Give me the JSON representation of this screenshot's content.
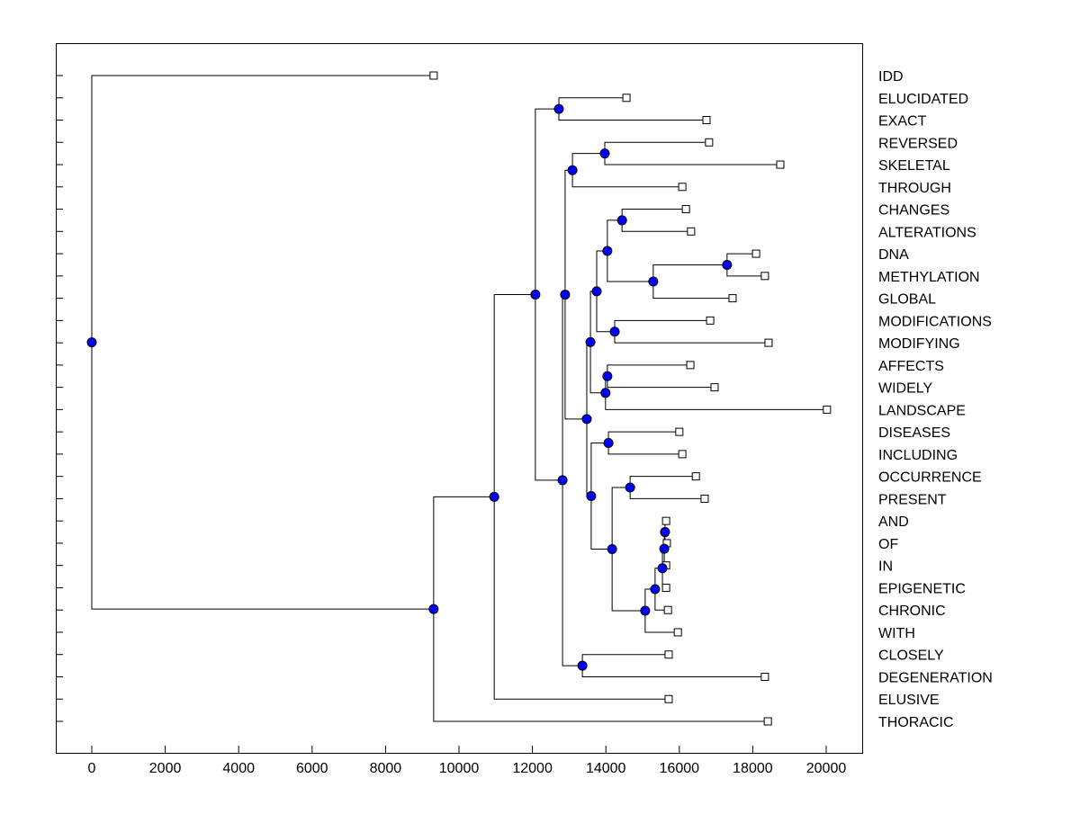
{
  "chart_data": {
    "type": "dendrogram",
    "title": "",
    "xlabel": "",
    "ylabel": "",
    "xlim": [
      -980,
      20980
    ],
    "xticks": [
      0,
      2000,
      4000,
      6000,
      8000,
      10000,
      12000,
      14000,
      16000,
      18000,
      20000
    ],
    "grid": false,
    "colors": {
      "node": "#0000ff",
      "line": "#000000",
      "leaf": "#ffffff"
    },
    "tree": {
      "h": 0,
      "children": [
        {
          "label": "IDD",
          "h": 9310
        },
        {
          "h": 9310,
          "children": [
            {
              "h": 10960,
              "children": [
                {
                  "h": 12080,
                  "children": [
                    {
                      "h": 12720,
                      "children": [
                        {
                          "label": "ELUCIDATED",
                          "h": 14560
                        },
                        {
                          "label": "EXACT",
                          "h": 16740
                        }
                      ]
                    },
                    {
                      "h": 12820,
                      "children": [
                        {
                          "h": 12890,
                          "children": [
                            {
                              "h": 13090,
                              "children": [
                                {
                                  "h": 13970,
                                  "children": [
                                    {
                                      "label": "REVERSED",
                                      "h": 16810
                                    },
                                    {
                                      "label": "SKELETAL",
                                      "h": 18750
                                    }
                                  ]
                                },
                                {
                                  "label": "THROUGH",
                                  "h": 16080
                                }
                              ]
                            },
                            {
                              "h": 13480,
                              "children": [
                                {
                                  "h": 13580,
                                  "children": [
                                    {
                                      "h": 13750,
                                      "children": [
                                        {
                                          "h": 14040,
                                          "children": [
                                            {
                                              "h": 14440,
                                              "children": [
                                                {
                                                  "label": "CHANGES",
                                                  "h": 16180
                                                },
                                                {
                                                  "label": "ALTERATIONS",
                                                  "h": 16320
                                                }
                                              ]
                                            },
                                            {
                                              "h": 15290,
                                              "children": [
                                                {
                                                  "h": 17300,
                                                  "children": [
                                                    {
                                                      "label": "DNA",
                                                      "h": 18090
                                                    },
                                                    {
                                                      "label": "METHYLATION",
                                                      "h": 18330
                                                    }
                                                  ]
                                                },
                                                {
                                                  "label": "GLOBAL",
                                                  "h": 17450
                                                }
                                              ]
                                            }
                                          ]
                                        },
                                        {
                                          "h": 14240,
                                          "children": [
                                            {
                                              "label": "MODIFICATIONS",
                                              "h": 16840
                                            },
                                            {
                                              "label": "MODIFYING",
                                              "h": 18430
                                            }
                                          ]
                                        }
                                      ]
                                    },
                                    {
                                      "h": 13990,
                                      "children": [
                                        {
                                          "h": 14040,
                                          "children": [
                                            {
                                              "label": "AFFECTS",
                                              "h": 16300
                                            },
                                            {
                                              "label": "WIDELY",
                                              "h": 16960
                                            }
                                          ]
                                        },
                                        {
                                          "label": "LANDSCAPE",
                                          "h": 20020
                                        }
                                      ]
                                    }
                                  ]
                                },
                                {
                                  "h": 13600,
                                  "children": [
                                    {
                                      "h": 14070,
                                      "children": [
                                        {
                                          "label": "DISEASES",
                                          "h": 16000
                                        },
                                        {
                                          "label": "INCLUDING",
                                          "h": 16080
                                        }
                                      ]
                                    },
                                    {
                                      "h": 14170,
                                      "children": [
                                        {
                                          "h": 14660,
                                          "children": [
                                            {
                                              "label": "OCCURRENCE",
                                              "h": 16450
                                            },
                                            {
                                              "label": "PRESENT",
                                              "h": 16690
                                            }
                                          ]
                                        },
                                        {
                                          "h": 15070,
                                          "children": [
                                            {
                                              "h": 15340,
                                              "children": [
                                                {
                                                  "h": 15540,
                                                  "children": [
                                                    {
                                                      "h": 15590,
                                                      "children": [
                                                        {
                                                          "h": 15610,
                                                          "children": [
                                                            {
                                                              "label": "AND",
                                                              "h": 15640
                                                            },
                                                            {
                                                              "label": "OF",
                                                              "h": 15660
                                                            }
                                                          ]
                                                        },
                                                        {
                                                          "label": "IN",
                                                          "h": 15640
                                                        }
                                                      ]
                                                    },
                                                    {
                                                      "label": "EPIGENETIC",
                                                      "h": 15640
                                                    }
                                                  ]
                                                },
                                                {
                                                  "label": "CHRONIC",
                                                  "h": 15690
                                                }
                                              ]
                                            },
                                            {
                                              "label": "WITH",
                                              "h": 15960
                                            }
                                          ]
                                        }
                                      ]
                                    }
                                  ]
                                }
                              ]
                            }
                          ]
                        },
                        {
                          "h": 13360,
                          "children": [
                            {
                              "label": "CLOSELY",
                              "h": 15710
                            },
                            {
                              "label": "DEGENERATION",
                              "h": 18330
                            }
                          ]
                        }
                      ]
                    }
                  ]
                },
                {
                  "label": "ELUSIVE",
                  "h": 15710
                }
              ]
            },
            {
              "label": "THORACIC",
              "h": 18410
            }
          ]
        }
      ]
    }
  }
}
